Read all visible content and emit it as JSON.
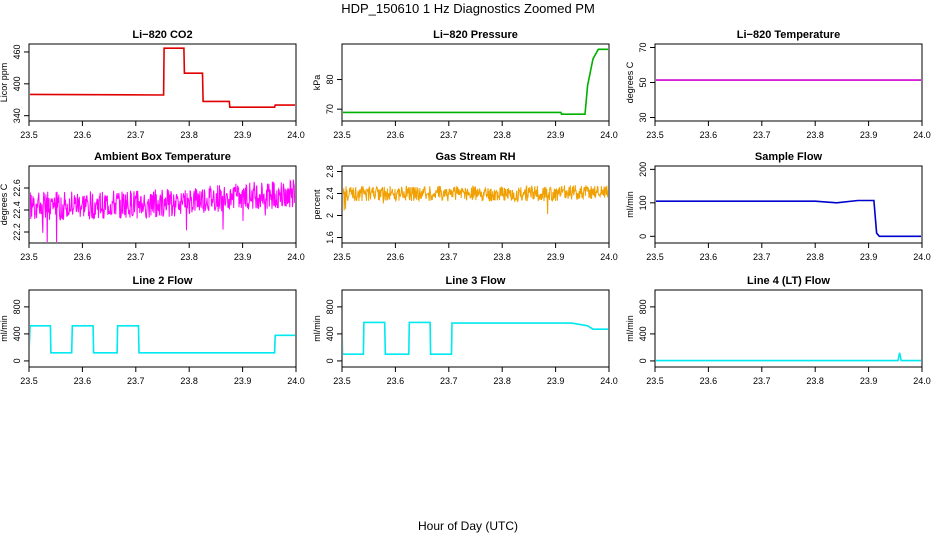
{
  "page": {
    "title": "HDP_150610  1 Hz Diagnostics Zoomed PM",
    "x_caption": "Hour of Day (UTC)"
  },
  "chart_data": [
    {
      "type": "line",
      "title": "Li−820 CO2",
      "ylabel": "Licor ppm",
      "color": "#e00000",
      "xlim": [
        23.5,
        24.0
      ],
      "ylim": [
        330,
        475
      ],
      "xticks": [
        "23.5",
        "23.6",
        "23.7",
        "23.8",
        "23.9",
        "24.0"
      ],
      "yticks": [
        340,
        400,
        460
      ],
      "series": [
        {
          "x": [
            23.5,
            23.752,
            23.753,
            23.79,
            23.791,
            23.825,
            23.826,
            23.875,
            23.876,
            23.96,
            23.961,
            24.0
          ],
          "y": [
            380,
            379,
            467,
            467,
            420,
            420,
            367,
            367,
            356,
            356,
            360,
            360
          ]
        }
      ]
    },
    {
      "type": "line",
      "title": "Li−820 Pressure",
      "ylabel": "kPa",
      "color": "#00b000",
      "xlim": [
        23.5,
        24.0
      ],
      "ylim": [
        66,
        92
      ],
      "xticks": [
        "23.5",
        "23.6",
        "23.7",
        "23.8",
        "23.9",
        "24.0"
      ],
      "yticks": [
        70,
        80
      ],
      "series": [
        {
          "x": [
            23.5,
            23.91,
            23.911,
            23.955,
            23.96,
            23.97,
            23.98,
            24.0
          ],
          "y": [
            68.9,
            68.9,
            68.3,
            68.3,
            78,
            87,
            90.2,
            90.2
          ]
        }
      ]
    },
    {
      "type": "line",
      "title": "Li−820 Temperature",
      "ylabel": "degrees C",
      "color": "#d000d0",
      "xlim": [
        23.5,
        24.0
      ],
      "ylim": [
        28,
        72
      ],
      "xticks": [
        "23.5",
        "23.6",
        "23.7",
        "23.8",
        "23.9",
        "24.0"
      ],
      "yticks": [
        30,
        50,
        70
      ],
      "series": [
        {
          "x": [
            23.5,
            24.0
          ],
          "y": [
            51.4,
            51.4
          ]
        }
      ]
    },
    {
      "type": "line",
      "title": "Ambient Box Temperature",
      "ylabel": "degrees C",
      "color": "#ff00ff",
      "xlim": [
        23.5,
        24.0
      ],
      "ylim": [
        22.1,
        22.8
      ],
      "xticks": [
        "23.5",
        "23.6",
        "23.7",
        "23.8",
        "23.9",
        "24.0"
      ],
      "yticks": [
        22.2,
        22.4,
        22.6
      ],
      "series": [
        {
          "x": [
            23.5,
            23.6,
            23.7,
            23.8,
            23.9,
            24.0
          ],
          "y": [
            22.44,
            22.44,
            22.45,
            22.48,
            22.52,
            22.55
          ]
        }
      ]
    },
    {
      "type": "line",
      "title": "Gas Stream RH",
      "ylabel": "percent",
      "color": "#f0a000",
      "xlim": [
        23.5,
        24.0
      ],
      "ylim": [
        1.5,
        2.9
      ],
      "xticks": [
        "23.5",
        "23.6",
        "23.7",
        "23.8",
        "23.9",
        "24.0"
      ],
      "yticks": [
        1.6,
        2.0,
        2.4,
        2.8
      ],
      "series": [
        {
          "x": [
            23.5,
            23.6,
            23.7,
            23.8,
            23.9,
            24.0
          ],
          "y": [
            2.4,
            2.4,
            2.4,
            2.4,
            2.4,
            2.45
          ]
        }
      ]
    },
    {
      "type": "line",
      "title": "Sample Flow",
      "ylabel": "ml/min",
      "color": "#0000cc",
      "xlim": [
        23.5,
        24.0
      ],
      "ylim": [
        -20,
        210
      ],
      "xticks": [
        "23.5",
        "23.6",
        "23.7",
        "23.8",
        "23.9",
        "24.0"
      ],
      "yticks": [
        0,
        100,
        200
      ],
      "series": [
        {
          "x": [
            23.5,
            23.8,
            23.84,
            23.88,
            23.91,
            23.915,
            23.92,
            24.0
          ],
          "y": [
            105,
            105,
            100,
            107,
            107,
            10,
            0,
            0
          ]
        }
      ]
    },
    {
      "type": "line",
      "title": "Line 2 Flow",
      "ylabel": "ml/min",
      "color": "#00e8f0",
      "xlim": [
        23.5,
        24.0
      ],
      "ylim": [
        -90,
        1050
      ],
      "xticks": [
        "23.5",
        "23.6",
        "23.7",
        "23.8",
        "23.9",
        "24.0"
      ],
      "yticks": [
        0,
        400,
        800
      ],
      "series": [
        {
          "x": [
            23.5,
            23.502,
            23.54,
            23.541,
            23.58,
            23.581,
            23.62,
            23.621,
            23.665,
            23.666,
            23.705,
            23.706,
            23.96,
            23.961,
            24.0
          ],
          "y": [
            120,
            520,
            520,
            120,
            120,
            520,
            520,
            120,
            120,
            520,
            520,
            120,
            120,
            380,
            380
          ]
        }
      ]
    },
    {
      "type": "line",
      "title": "Line 3 Flow",
      "ylabel": "ml/min",
      "color": "#00e8f0",
      "xlim": [
        23.5,
        24.0
      ],
      "ylim": [
        -90,
        1050
      ],
      "xticks": [
        "23.5",
        "23.6",
        "23.7",
        "23.8",
        "23.9",
        "24.0"
      ],
      "yticks": [
        0,
        400,
        800
      ],
      "series": [
        {
          "x": [
            23.5,
            23.501,
            23.54,
            23.541,
            23.58,
            23.581,
            23.625,
            23.626,
            23.665,
            23.666,
            23.705,
            23.706,
            23.93,
            23.96,
            23.97,
            24.0
          ],
          "y": [
            560,
            100,
            100,
            570,
            570,
            100,
            100,
            570,
            570,
            100,
            100,
            560,
            560,
            520,
            470,
            470
          ]
        }
      ]
    },
    {
      "type": "line",
      "title": "Line 4 (LT) Flow",
      "ylabel": "ml/min",
      "color": "#00e8f0",
      "xlim": [
        23.5,
        24.0
      ],
      "ylim": [
        -90,
        1050
      ],
      "xticks": [
        "23.5",
        "23.6",
        "23.7",
        "23.8",
        "23.9",
        "24.0"
      ],
      "yticks": [
        0,
        400,
        800
      ],
      "series": [
        {
          "x": [
            23.5,
            23.955,
            23.958,
            23.961,
            23.964,
            24.0
          ],
          "y": [
            5,
            5,
            120,
            5,
            5,
            5
          ]
        }
      ]
    }
  ]
}
